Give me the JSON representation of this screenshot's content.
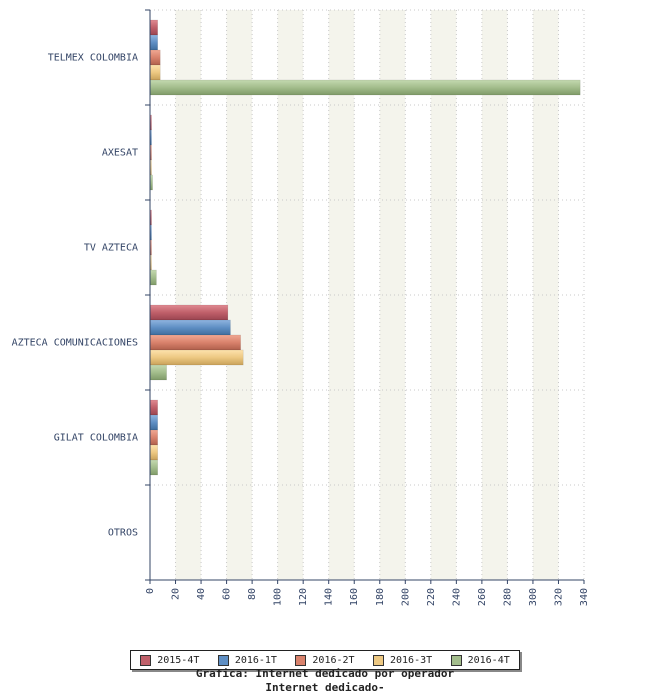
{
  "chart_data": {
    "type": "bar",
    "orientation": "horizontal",
    "title": "Grafica: Internet dedicado por operador",
    "subtitle": "Internet dedicado-",
    "categories": [
      "TELMEX COLOMBIA",
      "AXESAT",
      "TV AZTECA",
      "AZTECA COMUNICACIONES",
      "GILAT COLOMBIA",
      "OTROS"
    ],
    "series": [
      {
        "name": "2015-4T",
        "color": "#c0606a",
        "values": [
          6,
          1,
          1,
          61,
          6,
          0
        ]
      },
      {
        "name": "2016-1T",
        "color": "#5f8fc4",
        "values": [
          6,
          1,
          1,
          63,
          6,
          0
        ]
      },
      {
        "name": "2016-2T",
        "color": "#d9826c",
        "values": [
          8,
          1,
          1,
          71,
          6,
          0
        ]
      },
      {
        "name": "2016-3T",
        "color": "#edc882",
        "values": [
          8,
          1,
          1,
          73,
          6,
          0
        ]
      },
      {
        "name": "2016-4T",
        "color": "#a3bd8c",
        "values": [
          337,
          2,
          5,
          13,
          6,
          0
        ]
      }
    ],
    "xlim": [
      0,
      340
    ],
    "xticks": [
      "0",
      "20",
      "40",
      "60",
      "80",
      "100",
      "120",
      "140",
      "160",
      "180",
      "200",
      "220",
      "240",
      "260",
      "280",
      "300",
      "320",
      "340"
    ],
    "grid": true,
    "legend_position": "bottom"
  }
}
